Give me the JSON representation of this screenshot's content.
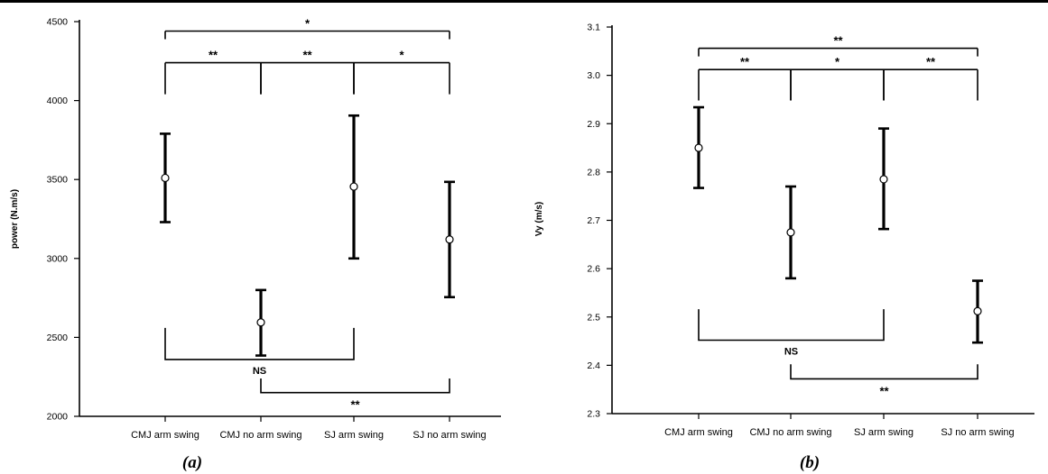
{
  "chart_data": [
    {
      "type": "scatter",
      "panel_label": "(a)",
      "ylabel": "power (N.m/s)",
      "xlabel": "",
      "categories": [
        "CMJ arm swing",
        "CMJ no arm swing",
        "SJ arm swing",
        "SJ no arm swing"
      ],
      "ylim": [
        2000,
        4500
      ],
      "yticks": [
        2000,
        2500,
        3000,
        3500,
        4000,
        4500
      ],
      "ytick_labels": [
        "2000",
        "2500",
        "3000",
        "3500",
        "4000",
        "4500"
      ],
      "means": [
        3510,
        2595,
        3455,
        3120
      ],
      "err_low": [
        3230,
        2385,
        3000,
        2755
      ],
      "err_high": [
        3790,
        2800,
        3905,
        3485
      ],
      "grid": false,
      "significance_top": [
        {
          "from": 0,
          "to": 3,
          "label": "*",
          "y": 4440
        },
        {
          "from": 0,
          "to": 1,
          "label": "**",
          "y": 4240
        },
        {
          "from": 1,
          "to": 2,
          "label": "**",
          "y": 4240
        },
        {
          "from": 2,
          "to": 3,
          "label": "*",
          "y": 4240
        }
      ],
      "top_drop_y": 4040,
      "significance_bottom": [
        {
          "from": 0,
          "to": 2,
          "label": "NS",
          "y": 2360,
          "tip": 2560
        },
        {
          "from": 1,
          "to": 3,
          "label": "**",
          "y": 2150,
          "tip": 2240
        }
      ]
    },
    {
      "type": "scatter",
      "panel_label": "(b)",
      "ylabel": "Vy (m/s)",
      "xlabel": "",
      "categories": [
        "CMJ arm swing",
        "CMJ no arm swing",
        "SJ arm swing",
        "SJ no arm swing"
      ],
      "ylim": [
        2.3,
        3.1
      ],
      "yticks": [
        2.3,
        2.4,
        2.5,
        2.6,
        2.7,
        2.8,
        2.9,
        3.0,
        3.1
      ],
      "ytick_labels": [
        "2.3",
        "2.4",
        "2.5",
        "2.6",
        "2.7",
        "2.8",
        "2.9",
        "3.0",
        "3.1"
      ],
      "means": [
        2.85,
        2.675,
        2.785,
        2.512
      ],
      "err_low": [
        2.767,
        2.58,
        2.682,
        2.447
      ],
      "err_high": [
        2.934,
        2.77,
        2.89,
        2.575
      ],
      "grid": false,
      "significance_top": [
        {
          "from": 0,
          "to": 3,
          "label": "**",
          "y": 3.056
        },
        {
          "from": 0,
          "to": 1,
          "label": "**",
          "y": 3.012
        },
        {
          "from": 1,
          "to": 2,
          "label": "*",
          "y": 3.012
        },
        {
          "from": 2,
          "to": 3,
          "label": "**",
          "y": 3.012
        }
      ],
      "top_drop_y": 2.948,
      "significance_bottom": [
        {
          "from": 0,
          "to": 2,
          "label": "NS",
          "y": 2.452,
          "tip": 2.516
        },
        {
          "from": 1,
          "to": 3,
          "label": "**",
          "y": 2.372,
          "tip": 2.402
        }
      ]
    }
  ]
}
